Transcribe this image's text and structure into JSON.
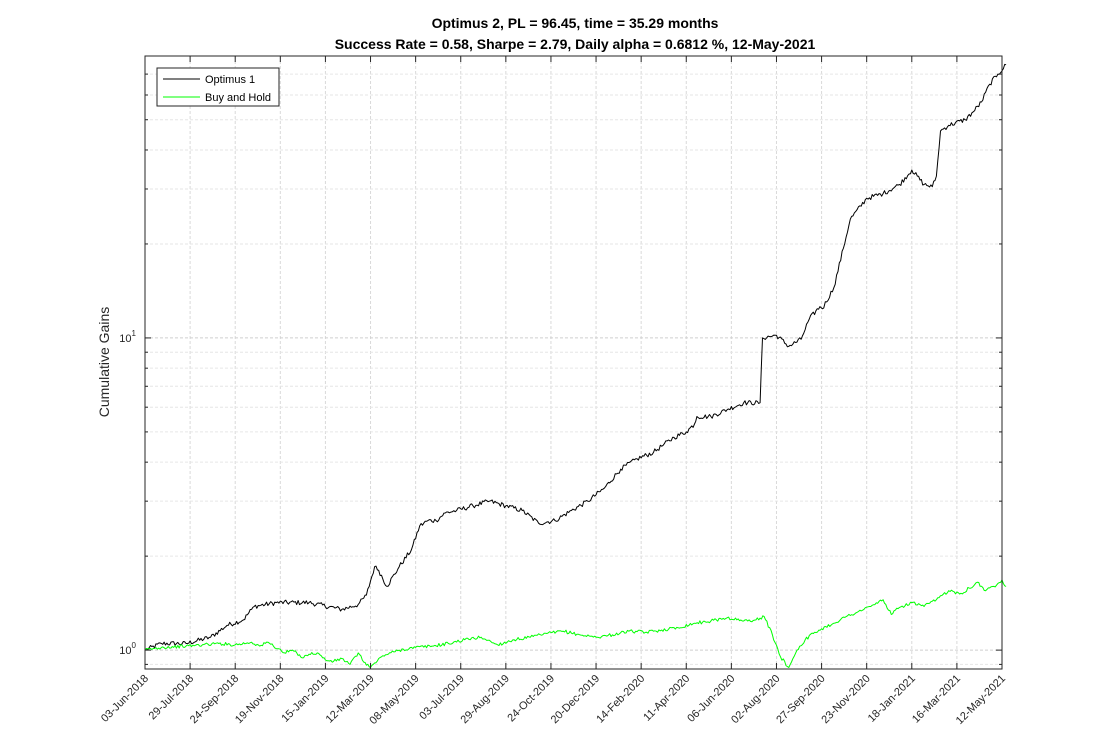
{
  "chart_data": {
    "type": "line",
    "title": "Optimus 2, PL = 96.45, time = 35.29 months",
    "subtitle": "Success Rate = 0.58, Sharpe = 2.79, Daily alpha = 0.6812 %, 12-May-2021",
    "xlabel": "",
    "ylabel": "Cumulative Gains",
    "yscale": "log",
    "ylim": [
      0.87,
      80
    ],
    "grid": true,
    "legend_position": "top-left",
    "x_ticks": [
      "03-Jun-2018",
      "29-Jul-2018",
      "24-Sep-2018",
      "19-Nov-2018",
      "15-Jan-2019",
      "12-Mar-2019",
      "08-May-2019",
      "03-Jul-2019",
      "29-Aug-2019",
      "24-Oct-2019",
      "20-Dec-2019",
      "14-Feb-2020",
      "11-Apr-2020",
      "06-Jun-2020",
      "02-Aug-2020",
      "27-Sep-2020",
      "23-Nov-2020",
      "18-Jan-2021",
      "16-Mar-2021",
      "12-May-2021"
    ],
    "y_ticks": [
      {
        "value": 1,
        "base": "10",
        "exp": "0"
      },
      {
        "value": 10,
        "base": "10",
        "exp": "1"
      }
    ],
    "series": [
      {
        "name": "Optimus 1",
        "color": "#000000",
        "x": [
          0,
          2,
          5,
          8,
          10,
          12,
          13,
          13.3,
          16,
          20,
          24,
          26,
          27,
          28,
          28.5,
          29.5,
          31,
          32.5,
          33.5,
          34.5,
          35.5,
          36.6,
          38,
          40,
          42,
          44,
          46,
          48,
          50,
          52,
          54,
          56,
          58,
          60,
          62,
          63,
          64.5,
          66,
          67,
          67.3,
          69,
          71,
          73,
          75,
          75.3,
          77,
          78.5,
          80,
          81,
          82.3,
          82.6,
          84,
          86,
          88,
          90,
          92,
          93.5,
          95,
          96,
          96.5,
          97,
          98,
          100,
          101,
          102,
          103,
          104,
          105
        ],
        "values": [
          1.0,
          1.05,
          1.05,
          1.1,
          1.2,
          1.25,
          1.35,
          1.38,
          1.42,
          1.42,
          1.35,
          1.4,
          1.5,
          1.85,
          1.8,
          1.6,
          1.85,
          2.1,
          2.5,
          2.6,
          2.6,
          2.75,
          2.8,
          2.9,
          3.0,
          2.9,
          2.8,
          2.55,
          2.6,
          2.8,
          3.0,
          3.3,
          3.8,
          4.1,
          4.3,
          4.5,
          4.8,
          5.0,
          5.3,
          5.6,
          5.6,
          5.9,
          6.2,
          6.2,
          10.0,
          10.2,
          9.4,
          9.9,
          11.5,
          12.6,
          12.4,
          14.5,
          24.0,
          28.0,
          29.0,
          31.0,
          34.5,
          31.0,
          30.5,
          33.0,
          46.0,
          48.0,
          50.0,
          53.0,
          57.0,
          65.0,
          70.0,
          75.0
        ]
      },
      {
        "name": "Buy and Hold",
        "color": "#00ff00",
        "x": [
          0,
          2,
          5,
          7,
          9,
          11,
          13,
          14,
          15,
          17,
          18,
          19,
          20,
          21,
          22,
          23,
          24,
          25,
          26,
          26.5,
          27.5,
          29,
          31,
          33,
          35,
          37,
          39,
          41,
          43,
          45,
          47,
          49,
          51,
          53,
          55,
          57,
          59,
          61,
          63,
          65,
          67,
          69,
          71,
          73,
          74.5,
          75.5,
          76.5,
          77.5,
          78.5,
          79.5,
          80.5,
          81.5,
          82.5,
          84,
          85.5,
          87,
          88.5,
          90,
          91,
          92,
          93.5,
          95,
          96.5,
          98,
          99.5,
          100.5,
          101.5,
          102.5,
          103.5,
          104.5,
          105
        ],
        "values": [
          1.0,
          1.02,
          1.03,
          1.04,
          1.05,
          1.04,
          1.06,
          1.03,
          1.06,
          0.98,
          1.0,
          0.95,
          0.97,
          0.98,
          0.93,
          0.92,
          0.94,
          0.9,
          0.98,
          0.93,
          0.88,
          0.96,
          1.0,
          1.02,
          1.03,
          1.05,
          1.08,
          1.1,
          1.04,
          1.08,
          1.1,
          1.13,
          1.15,
          1.12,
          1.1,
          1.12,
          1.15,
          1.14,
          1.16,
          1.18,
          1.22,
          1.24,
          1.27,
          1.24,
          1.25,
          1.28,
          1.12,
          0.95,
          0.88,
          1.0,
          1.08,
          1.13,
          1.17,
          1.22,
          1.28,
          1.33,
          1.38,
          1.45,
          1.3,
          1.37,
          1.42,
          1.38,
          1.45,
          1.55,
          1.52,
          1.58,
          1.65,
          1.55,
          1.6,
          1.68,
          1.6
        ]
      }
    ]
  }
}
